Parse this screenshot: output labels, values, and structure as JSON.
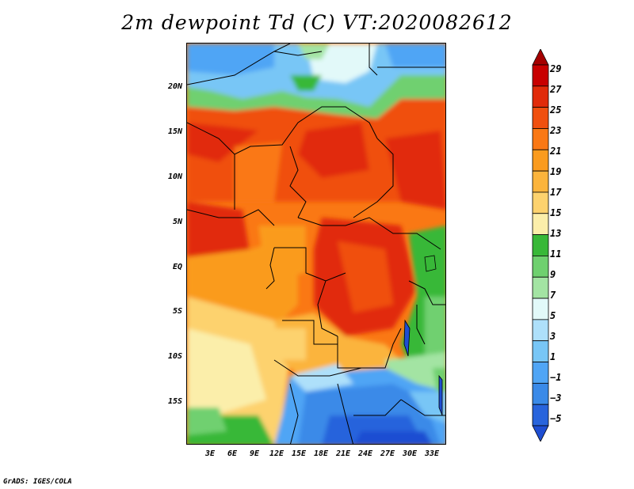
{
  "title": "2m dewpoint Td (C) VT:2020082612",
  "footer": "GrADS: IGES/COLA",
  "axes": {
    "y_ticks": [
      "20N",
      "15N",
      "10N",
      "5N",
      "EQ",
      "5S",
      "10S",
      "15S"
    ],
    "x_ticks": [
      "3E",
      "6E",
      "9E",
      "12E",
      "15E",
      "18E",
      "21E",
      "24E",
      "27E",
      "30E",
      "33E"
    ]
  },
  "colorbar": {
    "labels": [
      "29",
      "27",
      "25",
      "23",
      "21",
      "19",
      "17",
      "15",
      "13",
      "11",
      "9",
      "7",
      "5",
      "3",
      "1",
      "−1",
      "−3",
      "−5"
    ],
    "colors": [
      "#a50000",
      "#c80000",
      "#e12b0a",
      "#f0500f",
      "#fa7814",
      "#fa9b1e",
      "#fbb43c",
      "#fdd26e",
      "#fbeeaa",
      "#38b838",
      "#6fd06f",
      "#a3e4a3",
      "#e2f9f9",
      "#aee0fa",
      "#78c6f6",
      "#50a5f5",
      "#3a8ae8",
      "#2864dc",
      "#1e4ed2"
    ]
  },
  "map": {
    "regions": {
      "sahara_north": "dry-blue",
      "sahel": "moist-orange",
      "congo_basin": "moist-red",
      "southern_africa": "dry-blue",
      "southwest_coast": "pale-yellow"
    }
  }
}
